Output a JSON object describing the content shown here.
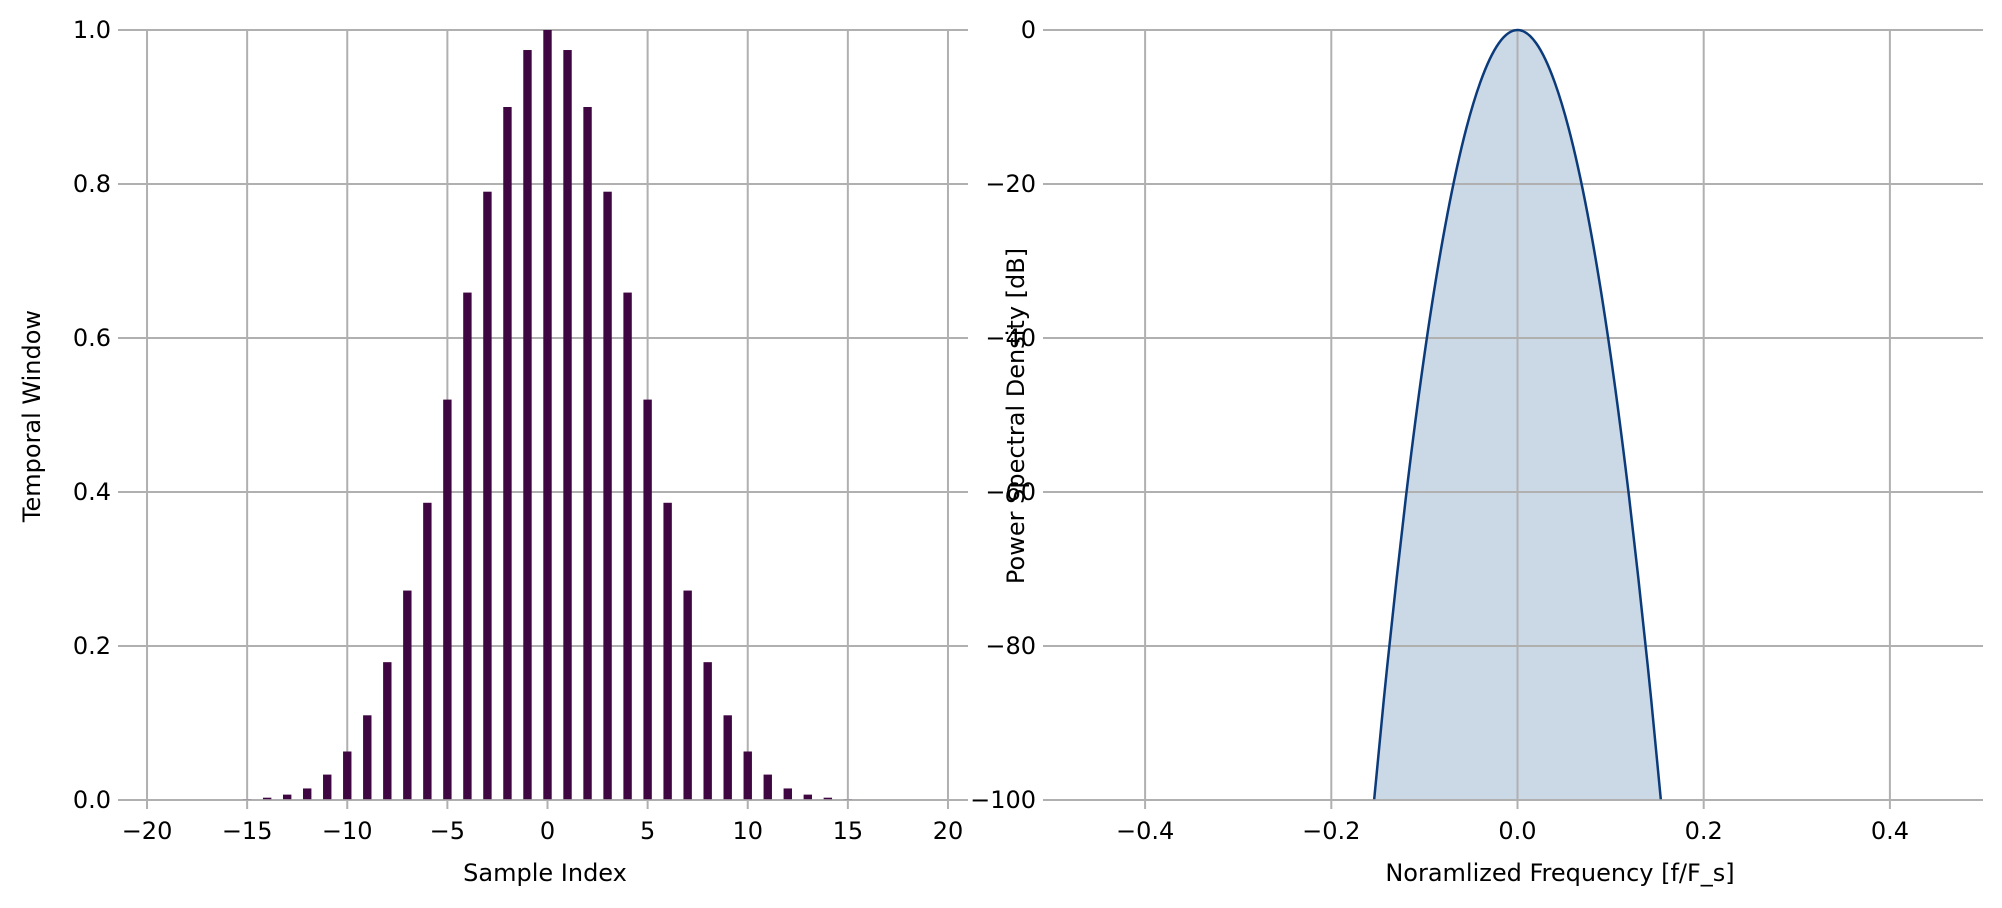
{
  "chart_data": [
    {
      "type": "bar",
      "title": "",
      "xlabel": "Sample Index",
      "ylabel": "Temporal Window",
      "xlim": [
        -21,
        21
      ],
      "ylim": [
        0,
        1.0
      ],
      "xticks": [
        -20,
        -15,
        -10,
        -5,
        0,
        5,
        10,
        15,
        20
      ],
      "xtick_labels": [
        "−20",
        "−15",
        "−10",
        "−5",
        "0",
        "5",
        "10",
        "15",
        "20"
      ],
      "yticks": [
        0.0,
        0.2,
        0.4,
        0.6,
        0.8,
        1.0
      ],
      "ytick_labels": [
        "0.0",
        "0.2",
        "0.4",
        "0.6",
        "0.8",
        "1.0"
      ],
      "grid": true,
      "bar_color": "#3f0741",
      "x": [
        -15,
        -14,
        -13,
        -12,
        -11,
        -10,
        -9,
        -8,
        -7,
        -6,
        -5,
        -4,
        -3,
        -2,
        -1,
        0,
        1,
        2,
        3,
        4,
        5,
        6,
        7,
        8,
        9,
        10,
        11,
        12,
        13,
        14,
        15
      ],
      "values": [
        0.001,
        0.003,
        0.007,
        0.015,
        0.033,
        0.063,
        0.11,
        0.179,
        0.272,
        0.386,
        0.52,
        0.659,
        0.79,
        0.9,
        0.974,
        1.0,
        0.974,
        0.9,
        0.79,
        0.659,
        0.52,
        0.386,
        0.272,
        0.179,
        0.11,
        0.063,
        0.033,
        0.015,
        0.007,
        0.003,
        0.001
      ]
    },
    {
      "type": "area",
      "title": "",
      "xlabel": "Noramlized Frequency [f/F_s]",
      "ylabel": "Power Spectral Density [dB]",
      "xlim": [
        -0.5,
        0.5
      ],
      "ylim": [
        -100,
        0
      ],
      "xticks": [
        -0.4,
        -0.2,
        0.0,
        0.2,
        0.4
      ],
      "xtick_labels": [
        "−0.4",
        "−0.2",
        "0.0",
        "0.2",
        "0.4"
      ],
      "yticks": [
        -100,
        -80,
        -60,
        -40,
        -20,
        0
      ],
      "ytick_labels": [
        "−100",
        "−80",
        "−60",
        "−40",
        "−20",
        "0"
      ],
      "grid": true,
      "line_color": "#0b3b7a",
      "fill_color": "#cbd8e6",
      "x": [
        -0.154,
        -0.14,
        -0.12,
        -0.1,
        -0.08,
        -0.06,
        -0.04,
        -0.02,
        0.0,
        0.02,
        0.04,
        0.06,
        0.08,
        0.1,
        0.12,
        0.14,
        0.154
      ],
      "y": [
        -100,
        -82.7,
        -60.8,
        -42.2,
        -27.0,
        -15.2,
        -6.8,
        -1.7,
        0,
        -1.7,
        -6.8,
        -15.2,
        -27.0,
        -42.2,
        -60.8,
        -82.7,
        -100
      ]
    }
  ]
}
